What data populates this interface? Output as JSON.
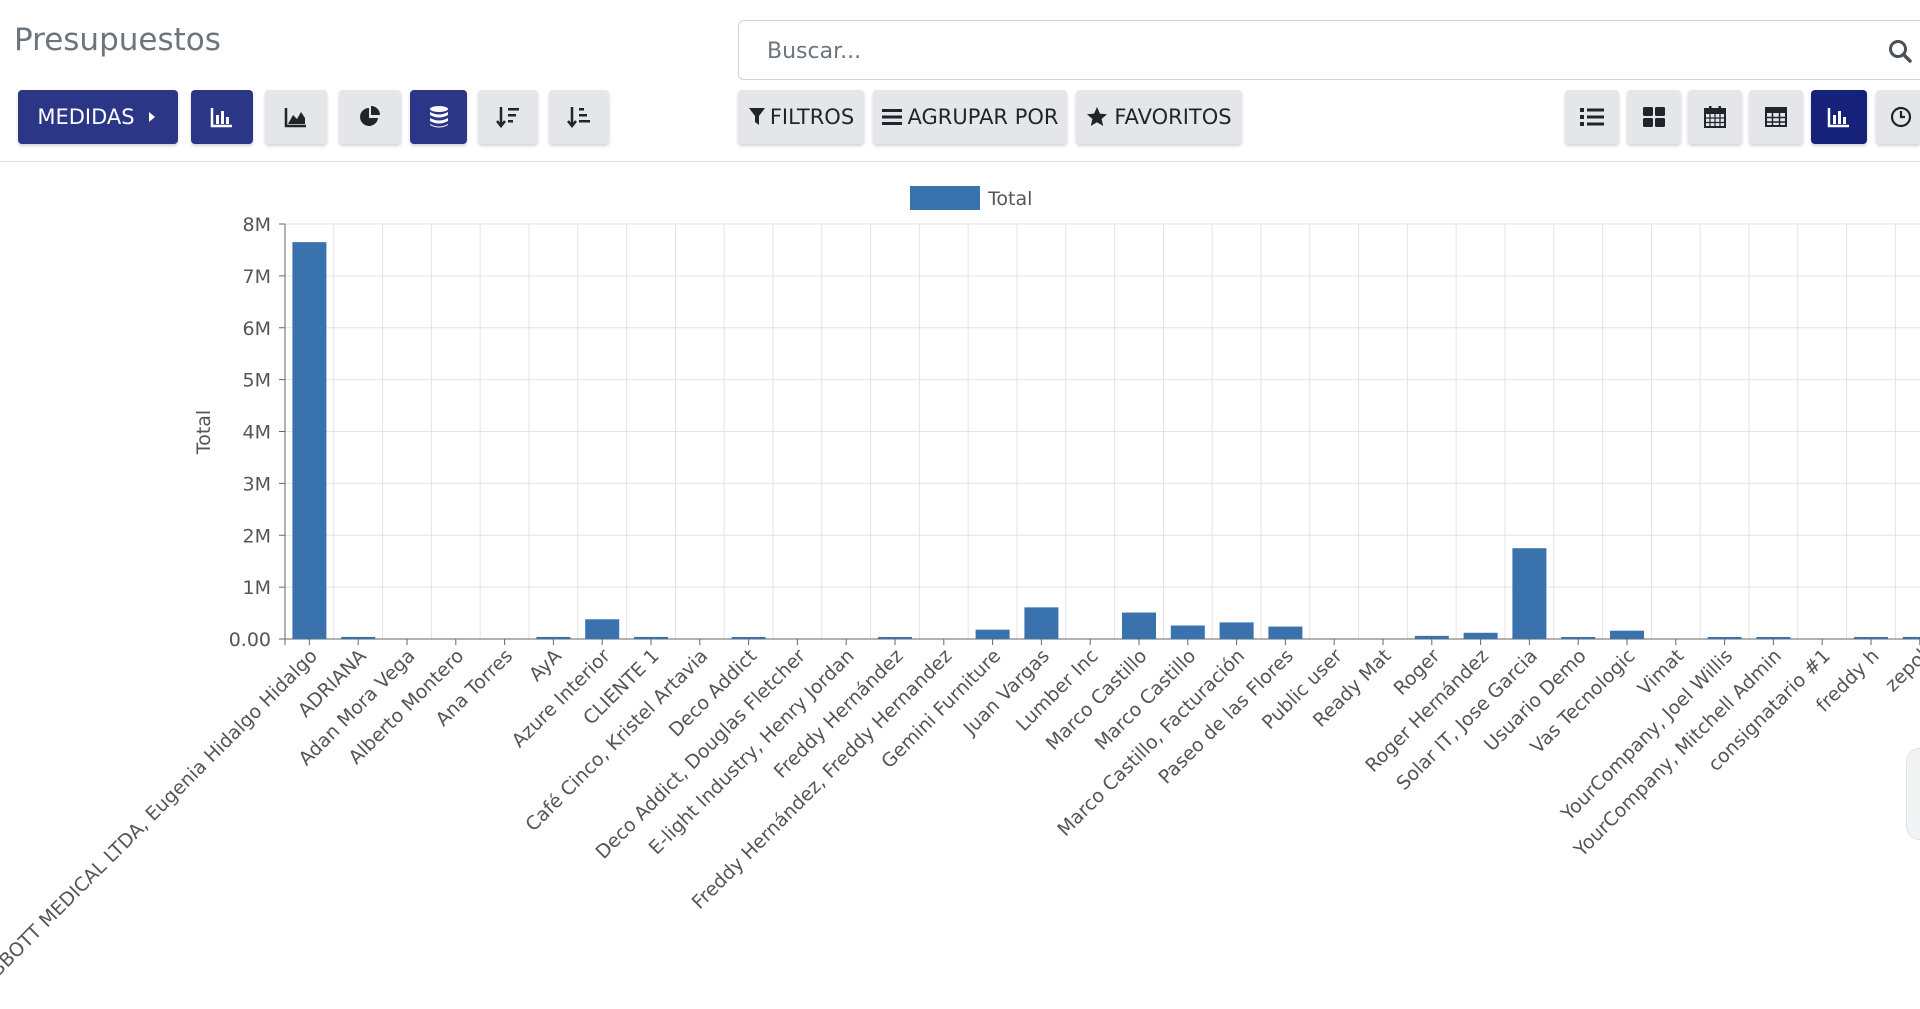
{
  "header": {
    "title": "Presupuestos",
    "search_placeholder": "Buscar..."
  },
  "toolbar": {
    "measures_label": "MEDIDAS",
    "filters_label": "FILTROS",
    "group_by_label": "AGRUPAR POR",
    "favorites_label": "FAVORITOS"
  },
  "colors": {
    "primary": "#2b3687",
    "active_view": "#16217a",
    "bar": "#3a72ad"
  },
  "icons": {
    "measures": "caret-right-icon",
    "bar_chart": "bar-chart-icon",
    "line_chart": "area-chart-icon",
    "pie_chart": "pie-chart-icon",
    "stacked": "database-icon",
    "sort_desc": "sort-amount-desc-icon",
    "sort_asc": "sort-amount-asc-icon",
    "filter": "filter-icon",
    "group": "bars-icon",
    "favorites": "star-icon",
    "views": [
      "list-icon",
      "kanban-icon",
      "calendar-icon",
      "pivot-icon",
      "graph-icon",
      "activity-icon"
    ]
  },
  "chart_data": {
    "type": "bar",
    "legend": [
      "Total"
    ],
    "legend_position": "top",
    "ylabel": "Total",
    "xlabel": "",
    "ylim": [
      0,
      8000000
    ],
    "y_ticks": [
      "0.00",
      "1M",
      "2M",
      "3M",
      "4M",
      "5M",
      "6M",
      "7M",
      "8M"
    ],
    "grid": true,
    "categories": [
      "ABBOTT MEDICAL LTDA, Eugenia Hidalgo Hidalgo",
      "ADRIANA",
      "Adan Mora Vega",
      "Alberto Montero",
      "Ana Torres",
      "AyA",
      "Azure Interior",
      "CLIENTE 1",
      "Café Cinco, Kristel Artavia",
      "Deco Addict",
      "Deco Addict, Douglas Fletcher",
      "E-light Industry, Henry Jordan",
      "Freddy Hernández",
      "Freddy Hernández, Freddy Hernandez",
      "Gemini Furniture",
      "Juan Vargas",
      "Lumber Inc",
      "Marco Castillo",
      "Marco Castillo",
      "Marco Castillo, Facturación",
      "Paseo de las Flores",
      "Public user",
      "Ready Mat",
      "Roger",
      "Roger Hernández",
      "Solar IT, Jose Garcia",
      "Usuario Demo",
      "Vas Tecnologic",
      "Vimat",
      "YourCompany, Joel Willis",
      "YourCompany, Mitchell Admin",
      "consignatario #1",
      "freddy h",
      "zepol"
    ],
    "series": [
      {
        "name": "Total",
        "values": [
          7650000,
          40000,
          0,
          0,
          0,
          40000,
          380000,
          40000,
          0,
          15000,
          0,
          0,
          15000,
          0,
          180000,
          610000,
          0,
          510000,
          260000,
          320000,
          240000,
          0,
          0,
          60000,
          120000,
          1750000,
          10000,
          160000,
          0,
          10000,
          10000,
          0,
          10000,
          40000
        ]
      }
    ]
  }
}
